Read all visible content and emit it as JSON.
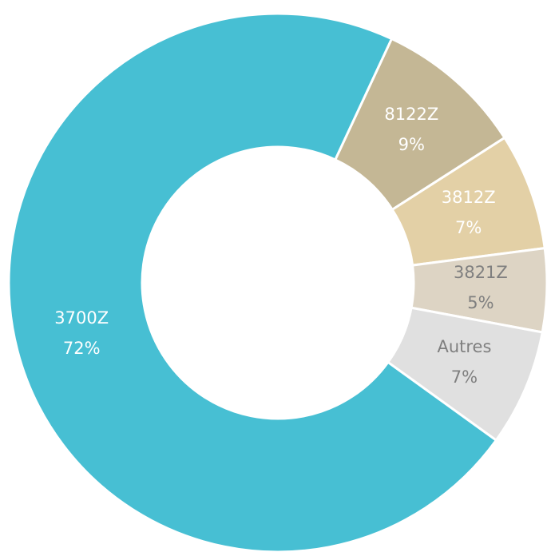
{
  "chart_data": {
    "type": "donut",
    "categories": [
      "8122Z",
      "3812Z",
      "3821Z",
      "Autres",
      "3700Z"
    ],
    "values": [
      9,
      7,
      5,
      7,
      72
    ],
    "value_labels": [
      "9%",
      "7%",
      "5%",
      "7%",
      "72%"
    ],
    "colors": [
      "#c4b795",
      "#e3d0a6",
      "#ddd4c4",
      "#e0e0e0",
      "#47bfd3"
    ],
    "label_colors": [
      "#ffffff",
      "#ffffff",
      "#7f7f7f",
      "#7f7f7f",
      "#ffffff"
    ]
  }
}
